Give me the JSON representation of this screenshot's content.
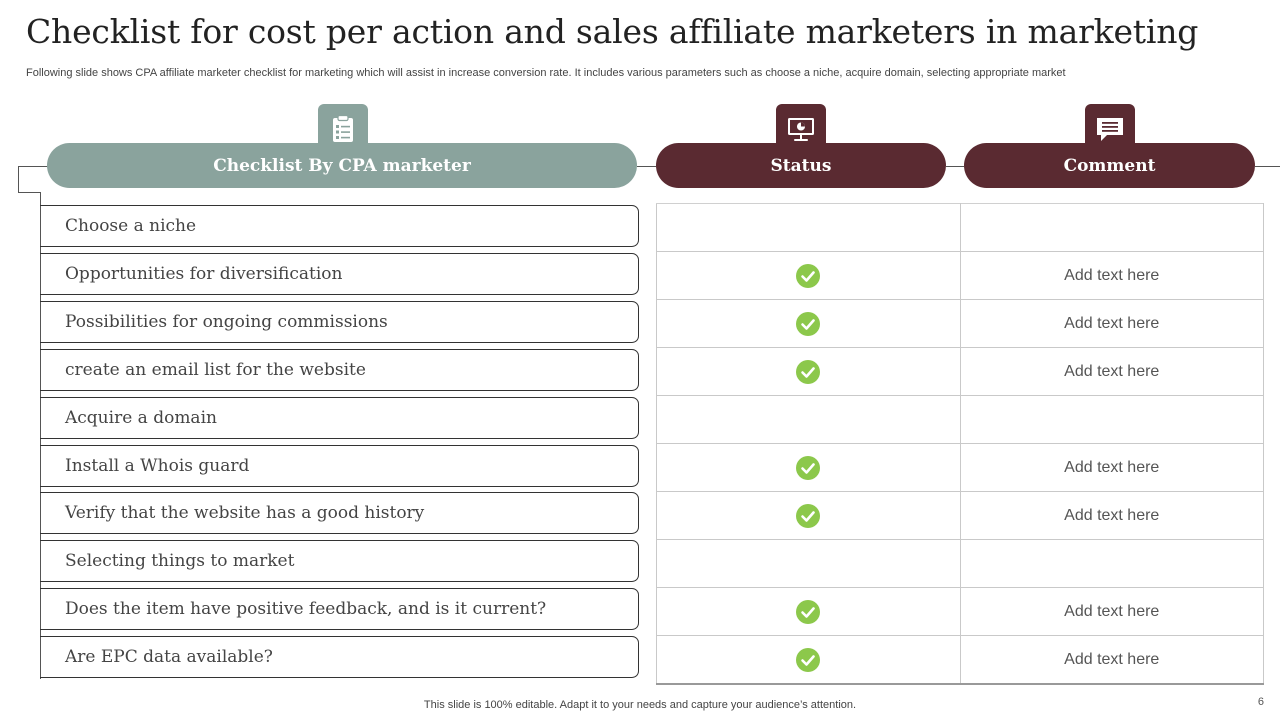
{
  "title": "Checklist for cost per action and sales affiliate marketers in marketing",
  "subtitle": "Following slide shows CPA affiliate marketer checklist for marketing which will assist in increase conversion rate. It includes various parameters such as choose a niche, acquire domain, selecting appropriate market",
  "headers": {
    "checklist": "Checklist By CPA marketer",
    "status": "Status",
    "comment": "Comment"
  },
  "icons": {
    "checklist": "clipboard-icon",
    "status": "presentation-icon",
    "comment": "speech-bubble-icon",
    "status_mark": "checkmark-icon"
  },
  "colors": {
    "sage": "#8aa39d",
    "maroon": "#5a2a31",
    "check": "#8cc84b"
  },
  "rows": [
    {
      "item": "Choose a niche",
      "checked": false,
      "comment": ""
    },
    {
      "item": "Opportunities for diversification",
      "checked": true,
      "comment": "Add text here"
    },
    {
      "item": "Possibilities for ongoing commissions",
      "checked": true,
      "comment": "Add text here"
    },
    {
      "item": "create an email list for the website",
      "checked": true,
      "comment": "Add text here"
    },
    {
      "item": "Acquire a domain",
      "checked": false,
      "comment": ""
    },
    {
      "item": "Install a Whois guard",
      "checked": true,
      "comment": "Add text here"
    },
    {
      "item": "Verify that the website has a good history",
      "checked": true,
      "comment": "Add text here"
    },
    {
      "item": "Selecting things to market",
      "checked": false,
      "comment": ""
    },
    {
      "item": "Does the item have positive feedback, and is it current?",
      "checked": true,
      "comment": "Add text here"
    },
    {
      "item": "Are EPC data available?",
      "checked": true,
      "comment": "Add text here"
    }
  ],
  "footer": "This slide is 100% editable. Adapt it to your needs and capture your audience’s attention.",
  "page_number": "6"
}
